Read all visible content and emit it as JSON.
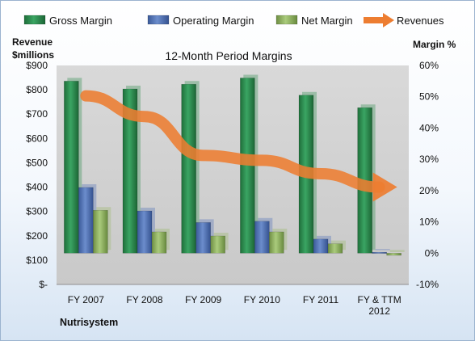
{
  "chart_data": {
    "type": "bar",
    "title": "12-Month Period Margins",
    "left_axis_title_lines": [
      "Revenue",
      "$millions"
    ],
    "right_axis_title": "Margin %",
    "left_axis": {
      "ylim": [
        0,
        900
      ],
      "ticks": [
        "$-",
        "$100",
        "$200",
        "$300",
        "$400",
        "$500",
        "$600",
        "$700",
        "$800",
        "$900"
      ]
    },
    "right_axis": {
      "ylim": [
        -10,
        60
      ],
      "ticks": [
        "-10%",
        "0%",
        "10%",
        "20%",
        "30%",
        "40%",
        "50%",
        "60%"
      ]
    },
    "categories": [
      [
        "FY 2007"
      ],
      [
        "FY 2008"
      ],
      [
        "FY 2009"
      ],
      [
        "FY 2010"
      ],
      [
        "FY 2011"
      ],
      [
        "FY & TTM",
        "2012"
      ]
    ],
    "series": [
      {
        "name": "Gross Margin",
        "kind": "bar",
        "axis": "right",
        "color": "#2e8b4e",
        "values": [
          55,
          52.5,
          54,
          56,
          50.5,
          46.5
        ]
      },
      {
        "name": "Operating Margin",
        "kind": "bar",
        "axis": "right",
        "color": "#4f71b6",
        "values": [
          21,
          13.5,
          9.8,
          10.2,
          4.5,
          0.3
        ]
      },
      {
        "name": "Net Margin",
        "kind": "bar",
        "axis": "right",
        "color": "#97b868",
        "values": [
          13.7,
          6.8,
          5.5,
          6.8,
          3,
          -0.7
        ]
      },
      {
        "name": "Revenues",
        "kind": "arrow-line",
        "axis": "left",
        "color": "#ed7d31",
        "values": [
          775,
          690,
          530,
          510,
          455,
          400
        ]
      }
    ],
    "legend_position": "top",
    "grid": false,
    "company": "Nutrisystem"
  }
}
